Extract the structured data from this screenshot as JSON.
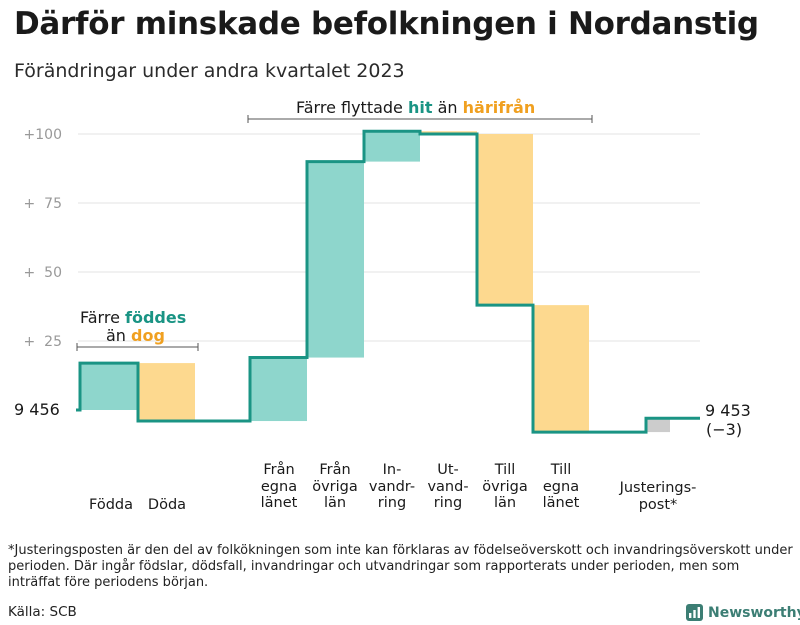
{
  "title": "Därför minskade befolkningen i Nordanstig",
  "subtitle": "Förändringar under andra kvartalet 2023",
  "footnote": "*Justeringsposten är den del av folkökningen som inte kan förklaras av födelseöverskott och invandringsöverskott under perioden. Där ingår födslar, dödsfall, invandringar och utvandringar som rapporterats under perioden, men som inträffat före periodens början.",
  "source": "Källa: SCB",
  "brand": "Newsworthy",
  "annotations": {
    "births": {
      "line1_prefix": "Färre ",
      "line1_highlight": "föddes",
      "line2_prefix": "än ",
      "line2_highlight": "dog"
    },
    "migration": {
      "prefix": "Färre flyttade ",
      "highlight1": "hit",
      "middle": " än ",
      "highlight2": "härifrån"
    }
  },
  "start_label": "9  456",
  "end_label": {
    "value": "9 453",
    "change": "(−3)"
  },
  "colors": {
    "positive": "#8ed6cc",
    "negative": "#fdd98f",
    "adjustment": "#cccccc",
    "line": "#1a9484",
    "grid": "#e3e3e3",
    "tick": "#999999"
  },
  "chart_data": {
    "type": "waterfall",
    "title": "Därför minskade befolkningen i Nordanstig",
    "subtitle": "Förändringar under andra kvartalet 2023",
    "start_value": 9456,
    "end_value": 9453,
    "net_change": -3,
    "ylim": [
      -18,
      104
    ],
    "y_ticks": [
      {
        "value": 25,
        "label": "+  25"
      },
      {
        "value": 50,
        "label": "+  50"
      },
      {
        "value": 75,
        "label": "+  75"
      },
      {
        "value": 100,
        "label": "+100"
      }
    ],
    "steps": [
      {
        "label_lines": [
          "Födda"
        ],
        "change": 17,
        "type": "positive"
      },
      {
        "label_lines": [
          "Döda"
        ],
        "change": -21,
        "type": "negative"
      },
      {
        "label_lines": [
          "Från",
          "egna",
          "länet"
        ],
        "change": 23,
        "type": "positive"
      },
      {
        "label_lines": [
          "Från",
          "övriga",
          "län"
        ],
        "change": 71,
        "type": "positive"
      },
      {
        "label_lines": [
          "In-",
          "vandr-",
          "ring"
        ],
        "change": 11,
        "type": "positive"
      },
      {
        "label_lines": [
          "Ut-",
          "vand-",
          "ring"
        ],
        "change": -1,
        "type": "negative"
      },
      {
        "label_lines": [
          "Till",
          "övriga",
          "län"
        ],
        "change": -62,
        "type": "negative"
      },
      {
        "label_lines": [
          "Till",
          "egna",
          "länet"
        ],
        "change": -46,
        "type": "negative"
      },
      {
        "label_lines": [
          "Justerings-",
          "post*"
        ],
        "change": 5,
        "type": "adjustment"
      }
    ]
  }
}
